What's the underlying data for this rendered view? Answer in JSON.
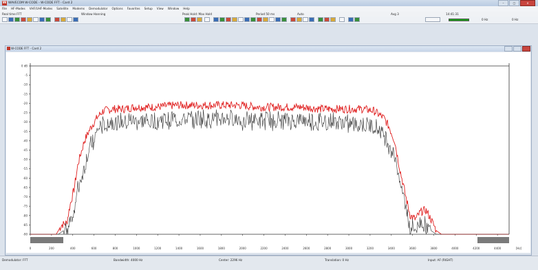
{
  "window": {
    "app_title": "WAVECOM W-CODE - W-CODE FFT - Card 2"
  },
  "menu": [
    "File",
    "HF-Modes",
    "VHF/UHF-Modes",
    "Satellite",
    "Modems",
    "Demodulator",
    "Options",
    "Favorites",
    "Setup",
    "View",
    "Window",
    "Help"
  ],
  "toolbar": {
    "mode": "Real time FFT",
    "window": "Window Hanning",
    "hold": "Peak Hold: Max Hold",
    "period": "Period 50 ms",
    "auto": "Auto",
    "avg": "Avg 3",
    "time": "14:41:31",
    "freq1": "0 Hz",
    "freq2": "0 Hz",
    "level_fraction": 1.0,
    "level_color": "#1aa31a"
  },
  "inner_window": {
    "title": "W-CODE FFT - Card 2"
  },
  "status": {
    "demodulator": "Demodulator: FFT",
    "bandwidth": "Bandwidth: 4000 Hz",
    "center": "Center: 2296 Hz",
    "translation": "Translation: 0 Hz",
    "input": "Input: AF (RIGHT)"
  },
  "chart_data": {
    "type": "line",
    "y_top_label": "0 dB",
    "xlim": [
      0,
      4600
    ],
    "ylim": [
      -90,
      0
    ],
    "x_tick_labels": [
      "0",
      "200",
      "400",
      "600",
      "800",
      "1000",
      "1200",
      "1400",
      "1600",
      "1800",
      "2000",
      "2200",
      "2400",
      "2600",
      "2800",
      "3000",
      "3200",
      "3400",
      "3600",
      "3800",
      "4000",
      "4200",
      "4400",
      "[Hz]"
    ],
    "y_tick_labels": [
      "0 dB",
      "-5",
      "-10",
      "-15",
      "-20",
      "-25",
      "-30",
      "-35",
      "-40",
      "-45",
      "-50",
      "-55",
      "-60",
      "-65",
      "-70",
      "-75",
      "-80",
      "-85",
      "-90"
    ],
    "series": [
      {
        "color": "#e02020",
        "points": [
          [
            0,
            -90
          ],
          [
            250,
            -90
          ],
          [
            300,
            -85
          ],
          [
            350,
            -84
          ],
          [
            380,
            -75
          ],
          [
            420,
            -66
          ],
          [
            460,
            -52
          ],
          [
            520,
            -40
          ],
          [
            580,
            -33
          ],
          [
            650,
            -27
          ],
          [
            700,
            -24
          ],
          [
            800,
            -23
          ],
          [
            900,
            -23
          ],
          [
            1000,
            -22
          ],
          [
            1200,
            -22
          ],
          [
            1400,
            -21
          ],
          [
            1600,
            -21
          ],
          [
            1800,
            -21
          ],
          [
            2000,
            -21
          ],
          [
            2200,
            -22
          ],
          [
            2400,
            -22
          ],
          [
            2600,
            -22
          ],
          [
            2800,
            -23
          ],
          [
            3000,
            -23
          ],
          [
            3200,
            -23
          ],
          [
            3300,
            -24
          ],
          [
            3400,
            -28
          ],
          [
            3450,
            -33
          ],
          [
            3500,
            -40
          ],
          [
            3550,
            -55
          ],
          [
            3600,
            -68
          ],
          [
            3650,
            -80
          ],
          [
            3700,
            -82
          ],
          [
            3750,
            -78
          ],
          [
            3800,
            -77
          ],
          [
            3850,
            -82
          ],
          [
            3900,
            -88
          ],
          [
            3950,
            -90
          ],
          [
            4600,
            -90
          ]
        ]
      },
      {
        "color": "#303030",
        "points": [
          [
            0,
            -90
          ],
          [
            270,
            -90
          ],
          [
            320,
            -88
          ],
          [
            360,
            -87
          ],
          [
            420,
            -75
          ],
          [
            460,
            -64
          ],
          [
            520,
            -52
          ],
          [
            580,
            -41
          ],
          [
            650,
            -33
          ],
          [
            700,
            -30
          ],
          [
            800,
            -29
          ],
          [
            900,
            -29
          ],
          [
            1000,
            -28
          ],
          [
            1200,
            -28
          ],
          [
            1400,
            -27
          ],
          [
            1600,
            -27
          ],
          [
            1800,
            -27
          ],
          [
            2000,
            -27
          ],
          [
            2200,
            -28
          ],
          [
            2400,
            -28
          ],
          [
            2600,
            -28
          ],
          [
            2800,
            -29
          ],
          [
            3000,
            -29
          ],
          [
            3200,
            -30
          ],
          [
            3300,
            -31
          ],
          [
            3400,
            -35
          ],
          [
            3450,
            -41
          ],
          [
            3500,
            -46
          ],
          [
            3550,
            -58
          ],
          [
            3600,
            -72
          ],
          [
            3650,
            -85
          ],
          [
            3700,
            -87
          ],
          [
            3750,
            -82
          ],
          [
            3800,
            -84
          ],
          [
            3850,
            -88
          ],
          [
            3900,
            -90
          ],
          [
            4600,
            -90
          ]
        ]
      }
    ],
    "passband_marker_color": "#7a7a7a",
    "grid": false
  }
}
